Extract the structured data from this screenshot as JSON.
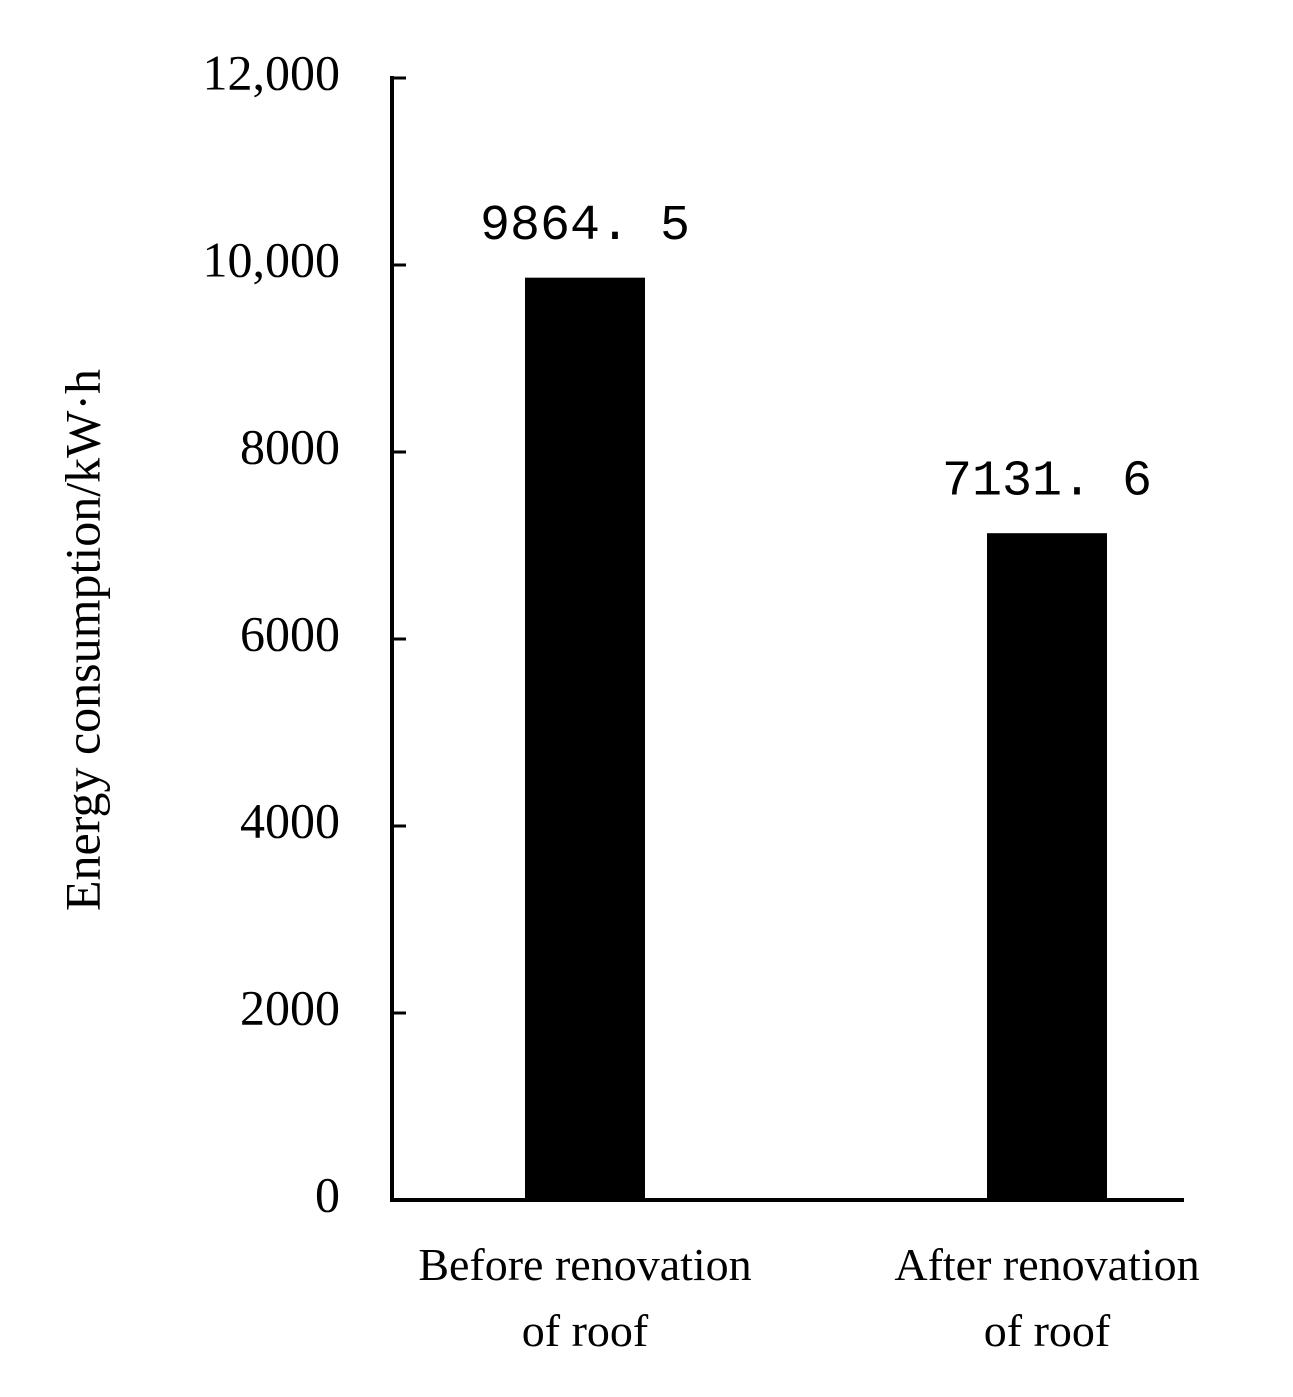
{
  "chart_data": {
    "type": "bar",
    "y_label": "Energy consumption/kW·h",
    "categories": [
      "Before renovation\nof roof",
      "After renovation\nof roof"
    ],
    "values": [
      9864.5,
      7131.6
    ],
    "value_labels": [
      "9864. 5",
      "7131. 6"
    ],
    "color": "#000000",
    "ylim": [
      0,
      12000
    ],
    "yticks": [
      0,
      2000,
      4000,
      6000,
      8000,
      {
        "value": 10000,
        "label": "10,000"
      },
      {
        "value": 12000,
        "label": "12,000"
      }
    ],
    "grid": false
  }
}
